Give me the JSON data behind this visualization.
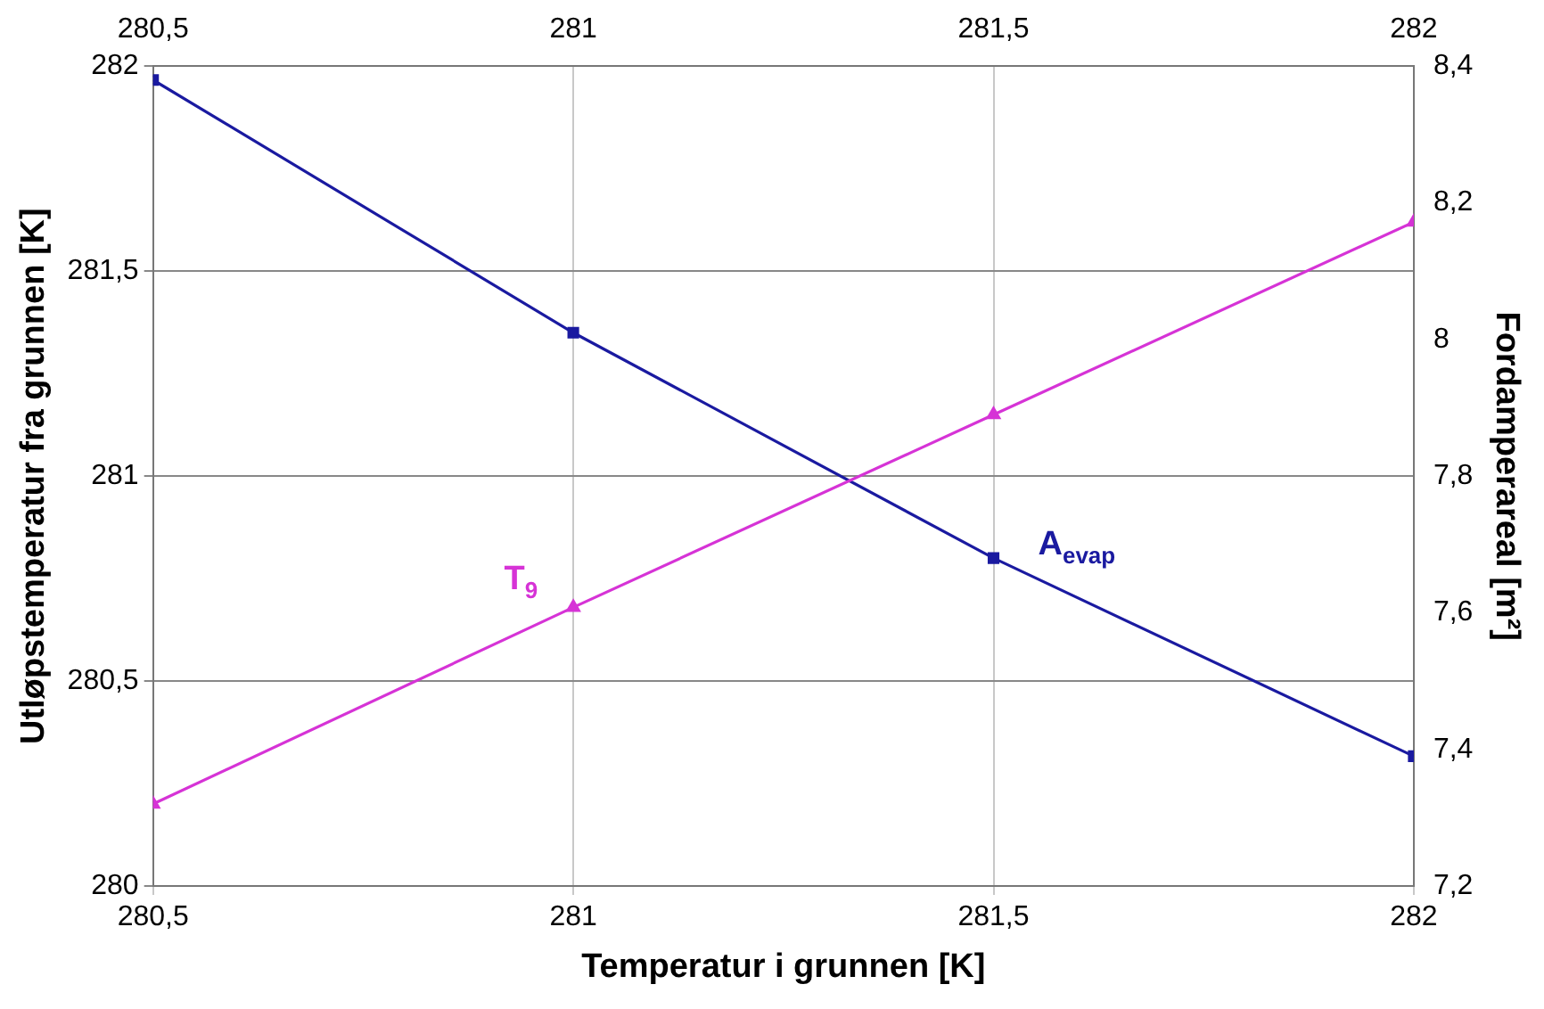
{
  "chart_data": {
    "type": "line",
    "xlabel": "Temperatur i grunnen [K]",
    "ylabel": "Utløpstemperatur fra grunnen [K]",
    "y2label": "Fordamperareal [m²]",
    "x": [
      280.5,
      281,
      281.5,
      282
    ],
    "xlim": [
      280.5,
      282
    ],
    "xticks": [
      {
        "value": 280.5,
        "label": "280,5"
      },
      281,
      {
        "value": 281.5,
        "label": "281,5"
      },
      282
    ],
    "x2lim": [
      280.5,
      282
    ],
    "x2ticks": [
      {
        "value": 280.5,
        "label": "280,5"
      },
      281,
      {
        "value": 281.5,
        "label": "281,5"
      },
      282
    ],
    "ylim": [
      280,
      282
    ],
    "yticks": [
      280,
      {
        "value": 280.5,
        "label": "280,5"
      },
      281,
      {
        "value": 281.5,
        "label": "281,5"
      },
      282
    ],
    "y2lim": [
      7.2,
      8.4
    ],
    "y2ticks": [
      {
        "value": 7.2,
        "label": "7,2"
      },
      {
        "value": 7.4,
        "label": "7,4"
      },
      {
        "value": 7.6,
        "label": "7,6"
      },
      {
        "value": 7.8,
        "label": "7,8"
      },
      8,
      {
        "value": 8.2,
        "label": "8,2"
      },
      {
        "value": 8.4,
        "label": "8,4"
      }
    ],
    "series": [
      {
        "name": "T$_{9}$",
        "color": "#d633d6",
        "marker": "triangle",
        "values": [
          280.2,
          280.68,
          281.15,
          281.62
        ]
      },
      {
        "name": "A$_{evap}$",
        "color": "#1a1aa0",
        "marker": "square",
        "axis": "y2",
        "values": [
          8.38,
          8.01,
          7.68,
          7.39
        ]
      }
    ],
    "grid": true,
    "legend": false,
    "line_style": "solid"
  }
}
